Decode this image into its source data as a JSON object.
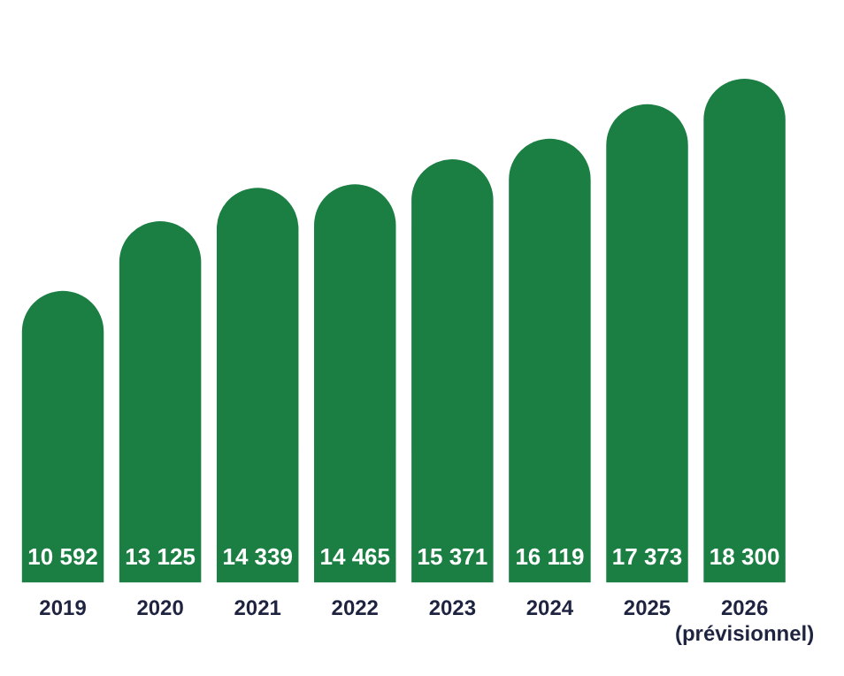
{
  "chart_data": {
    "type": "bar",
    "categories": [
      "2019",
      "2020",
      "2021",
      "2022",
      "2023",
      "2024",
      "2025",
      "2026 (prévisionnel)"
    ],
    "values": [
      10592,
      13125,
      14339,
      14465,
      15371,
      16119,
      17373,
      18300
    ],
    "value_labels": [
      "10 592",
      "13 125",
      "14 339",
      "14 465",
      "15 371",
      "16 119",
      "17 373",
      "18 300"
    ],
    "color": "#1b7f43",
    "tick_labels": "x",
    "grid": false,
    "legend": false
  }
}
